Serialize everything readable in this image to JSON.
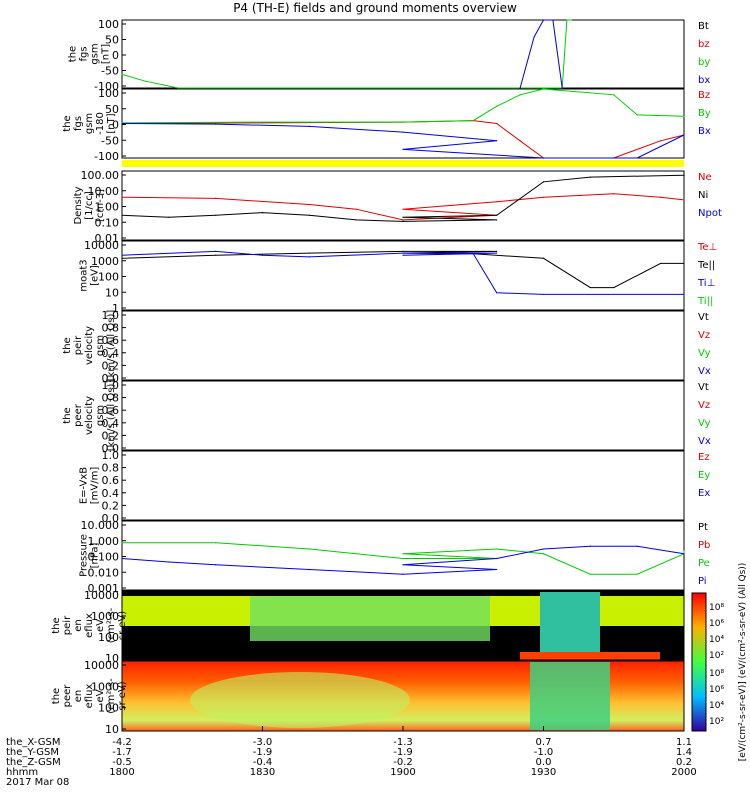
{
  "title": "P4 (TH-E) fields and ground moments overview",
  "panels": [
    {
      "ylabel": [
        "the",
        "fgs",
        "gsm",
        "[nT]"
      ],
      "yticks": [
        "100",
        "50",
        "0",
        "-50",
        "-100"
      ],
      "legend": [
        {
          "text": "Bt",
          "color": "#000000"
        },
        {
          "text": "bz",
          "color": "#e00000"
        },
        {
          "text": "by",
          "color": "#00cc00"
        },
        {
          "text": "bx",
          "color": "#0000e0"
        }
      ]
    },
    {
      "ylabel": [
        "the",
        "fgs",
        "gsm",
        "-180",
        "[nT]"
      ],
      "yticks": [
        "100",
        "50",
        "0",
        "-50",
        "-100"
      ],
      "legend": [
        {
          "text": "Bz",
          "color": "#e00000"
        },
        {
          "text": "By",
          "color": "#00cc00"
        },
        {
          "text": "Bx",
          "color": "#0000e0"
        }
      ]
    },
    {
      "ylabel": [
        "Density",
        "[1/cc]",
        "[cm-3]"
      ],
      "yticks": [
        "100.00",
        "10.00",
        "1.00",
        "0.10",
        "0.01"
      ],
      "legend": [
        {
          "text": "Ne",
          "color": "#e00000"
        },
        {
          "text": "Ni",
          "color": "#000000"
        },
        {
          "text": "Npot",
          "color": "#0000e0"
        }
      ]
    },
    {
      "ylabel": [
        "moat3",
        "[eV]"
      ],
      "yticks": [
        "10000",
        "1000",
        "100",
        "10",
        "1"
      ],
      "legend": [
        {
          "text": "Te⊥",
          "color": "#e00000"
        },
        {
          "text": "Te||",
          "color": "#000000"
        },
        {
          "text": "Ti⊥",
          "color": "#0000e0"
        },
        {
          "text": "Ti||",
          "color": "#00cc00"
        }
      ]
    },
    {
      "ylabel": [
        "the",
        "peir",
        "velocity",
        "gsm",
        "[km/s (All Qs)]"
      ],
      "yticks": [
        "1.0",
        "0.8",
        "0.6",
        "0.4",
        "0.2",
        "0.0"
      ],
      "legend": [
        {
          "text": "Vt",
          "color": "#000000"
        },
        {
          "text": "Vz",
          "color": "#e00000"
        },
        {
          "text": "Vy",
          "color": "#00cc00"
        },
        {
          "text": "Vx",
          "color": "#0000e0"
        }
      ]
    },
    {
      "ylabel": [
        "the",
        "peer",
        "velocity",
        "gsm",
        "[km/s (All Qs)]"
      ],
      "yticks": [
        "1.0",
        "0.8",
        "0.6",
        "0.4",
        "0.2",
        "0.0"
      ],
      "legend": [
        {
          "text": "Vt",
          "color": "#000000"
        },
        {
          "text": "Vz",
          "color": "#e00000"
        },
        {
          "text": "Vy",
          "color": "#00cc00"
        },
        {
          "text": "Vx",
          "color": "#0000e0"
        }
      ]
    },
    {
      "ylabel": [
        "E=-VxB",
        "[mV/m]"
      ],
      "yticks": [
        "1.0",
        "0.8",
        "0.6",
        "0.4",
        "0.2",
        "0.0"
      ],
      "legend": [
        {
          "text": "Ez",
          "color": "#e00000"
        },
        {
          "text": "Ey",
          "color": "#00cc00"
        },
        {
          "text": "Ex",
          "color": "#0000e0"
        }
      ]
    },
    {
      "ylabel": [
        "Pressure",
        "[nPa]"
      ],
      "yticks": [
        "10.000",
        "1.000",
        "0.100",
        "0.010",
        "0.001"
      ],
      "legend": [
        {
          "text": "Pt",
          "color": "#000000"
        },
        {
          "text": "Pb",
          "color": "#e00000"
        },
        {
          "text": "Pe",
          "color": "#00cc00"
        },
        {
          "text": "Pi",
          "color": "#0000e0"
        }
      ]
    },
    {
      "ylabel": [
        "the",
        "peir",
        "en",
        "eflux",
        "eV",
        "(cm²-s-",
        "sr-eV)"
      ],
      "yticks": [
        "10000",
        "1000",
        "100",
        "10"
      ],
      "legend": []
    },
    {
      "ylabel": [
        "the",
        "peer",
        "en",
        "eflux",
        "eV",
        "(cm²-s-",
        "sr-eV)"
      ],
      "yticks": [
        "10000",
        "1000",
        "100",
        "10"
      ],
      "legend": []
    }
  ],
  "colorbar": {
    "label": "[eV/(cm²-s-sr-eV)] (eV/(cm²-s-sr-eV) (All Qs))",
    "ticks_top": [
      "10⁸",
      "10⁶",
      "10⁴",
      "10²"
    ],
    "ticks_bottom": [
      "10⁸",
      "10⁶",
      "10⁴",
      "10²"
    ]
  },
  "xaxis": {
    "row_labels": [
      "the_X-GSM",
      "the_Y-GSM",
      "the_Z-GSM",
      "hhmm",
      "2017 Mar 08"
    ],
    "columns": [
      {
        "x": "-4.2",
        "y": "-1.7",
        "z": "-0.5",
        "t": "1800"
      },
      {
        "x": "-3.0",
        "y": "-1.9",
        "z": "-0.4",
        "t": "1830"
      },
      {
        "x": "-1.3",
        "y": "-1.9",
        "z": "-0.2",
        "t": "1900"
      },
      {
        "x": "0.7",
        "y": "-1.0",
        "z": "0.0",
        "t": "1930"
      },
      {
        "x": "1.1",
        "y": "1.4",
        "z": "0.2",
        "t": "2000"
      }
    ]
  },
  "chart_data": {
    "type": "line",
    "title": "P4 (TH-E) fields and ground moments overview",
    "x_unit": "hhmm",
    "x": [
      "1800",
      "1830",
      "1900",
      "1930",
      "2000"
    ],
    "series": [
      {
        "name": "by",
        "panel": 0,
        "x": [
          1800,
          1805,
          1812,
          1934,
          1935,
          1936
        ],
        "y": [
          -60,
          -80,
          -100,
          -100,
          100,
          100
        ]
      },
      {
        "name": "bx",
        "panel": 0,
        "x": [
          1925,
          1928,
          1930,
          1932,
          1934
        ],
        "y": [
          -100,
          50,
          100,
          100,
          -100
        ]
      },
      {
        "name": "Bz",
        "panel": 1,
        "x": [
          1800,
          1830,
          1900,
          1915,
          1920,
          1925,
          1930,
          1945,
          1955,
          2000
        ],
        "y": [
          0,
          2,
          5,
          10,
          0,
          -60,
          -120,
          -120,
          -60,
          -40
        ]
      },
      {
        "name": "By",
        "panel": 1,
        "x": [
          1800,
          1830,
          1900,
          1915,
          1920,
          1925,
          1930,
          1945,
          1950,
          2000
        ],
        "y": [
          2,
          5,
          5,
          10,
          60,
          100,
          120,
          100,
          30,
          25
        ]
      },
      {
        "name": "Bx",
        "panel": 1,
        "x": [
          1800,
          1820,
          1840,
          1860,
          1880,
          1900,
          1930,
          1950,
          1955,
          2000
        ],
        "y": [
          0,
          -2,
          -10,
          -30,
          -60,
          -90,
          -120,
          -120,
          -80,
          -40
        ]
      },
      {
        "name": "Ne",
        "panel": 2,
        "x": [
          1800,
          1820,
          1840,
          1850,
          1860,
          1880,
          1900,
          1920,
          1930,
          1945,
          1955,
          2000
        ],
        "y": [
          3,
          2.5,
          1,
          0.5,
          0.1,
          0.2,
          0.5,
          1.5,
          3,
          5,
          3,
          2
        ]
      },
      {
        "name": "Ni",
        "panel": 2,
        "x": [
          1800,
          1810,
          1820,
          1830,
          1840,
          1850,
          1860,
          1880,
          1900,
          1920,
          1930,
          1940,
          1960,
          2000
        ],
        "y": [
          0.2,
          0.15,
          0.2,
          0.3,
          0.2,
          0.1,
          0.08,
          0.1,
          0.15,
          0.2,
          30,
          60,
          80,
          80
        ]
      },
      {
        "name": "Te||",
        "panel": 3,
        "x": [
          1800,
          1820,
          1840,
          1860,
          1880,
          1900,
          1915,
          1930,
          1940,
          1945,
          1955,
          2000
        ],
        "y": [
          1000,
          1500,
          2000,
          2500,
          2500,
          2000,
          1800,
          1000,
          20,
          20,
          500,
          500
        ]
      },
      {
        "name": "Ti⊥",
        "panel": 3,
        "x": [
          1800,
          1820,
          1830,
          1840,
          1860,
          1880,
          1900,
          1915,
          1920,
          1930,
          2000
        ],
        "y": [
          1500,
          2500,
          1500,
          1200,
          2000,
          2000,
          1500,
          1800,
          10,
          8,
          8
        ]
      },
      {
        "name": "Pe",
        "panel": 7,
        "x": [
          1800,
          1820,
          1840,
          1860,
          1880,
          1900,
          1920,
          1930,
          1940,
          1950,
          1960,
          2000
        ],
        "y": [
          0.5,
          0.5,
          0.2,
          0.05,
          0.05,
          0.1,
          0.2,
          0.1,
          0.005,
          0.005,
          0.1,
          0.15
        ]
      },
      {
        "name": "Pi",
        "panel": 7,
        "x": [
          1800,
          1810,
          1820,
          1840,
          1860,
          1880,
          1900,
          1920,
          1930,
          1940,
          1950,
          2000
        ],
        "y": [
          0.05,
          0.03,
          0.02,
          0.01,
          0.005,
          0.01,
          0.02,
          0.05,
          0.2,
          0.3,
          0.3,
          0.1
        ]
      }
    ]
  }
}
